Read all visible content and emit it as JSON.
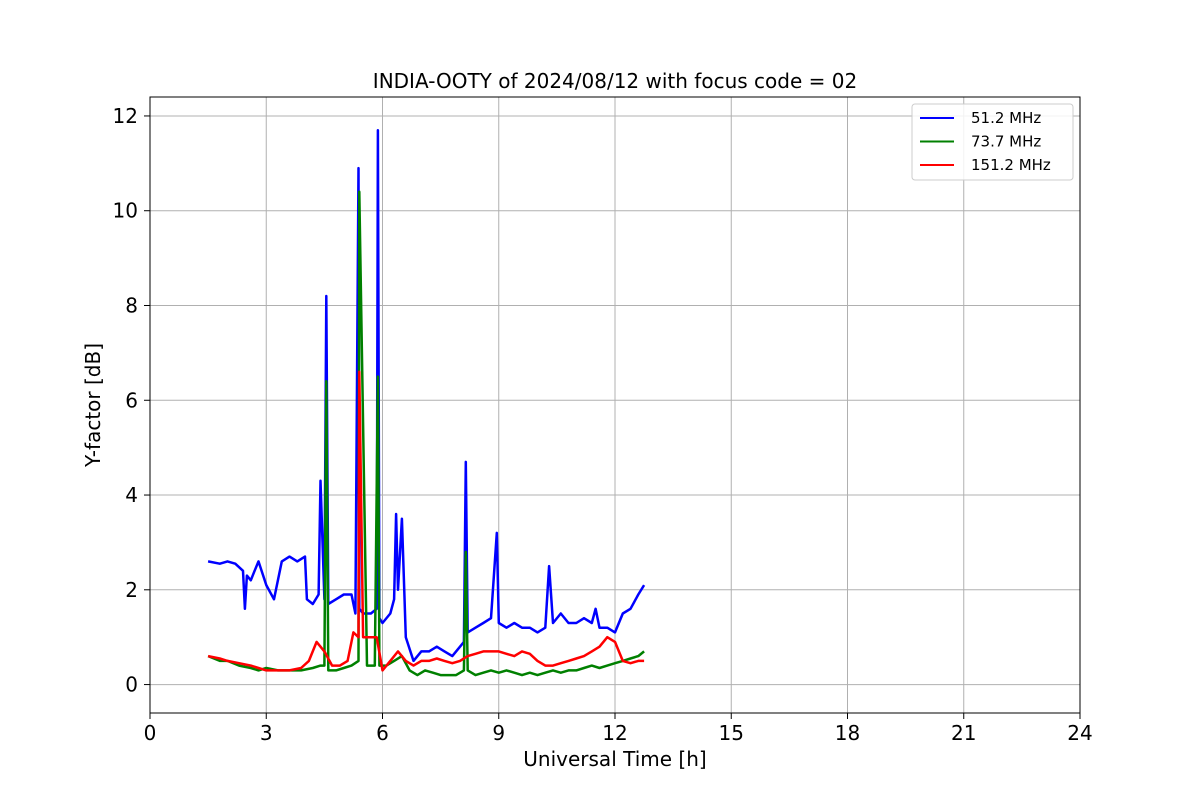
{
  "chart_data": {
    "type": "line",
    "title": "INDIA-OOTY of 2024/08/12 with focus code = 02",
    "xlabel": "Universal Time [h]",
    "ylabel": "Y-factor [dB]",
    "xlim": [
      0,
      24
    ],
    "ylim": [
      -0.6,
      12.4
    ],
    "xticks": [
      0,
      3,
      6,
      9,
      12,
      15,
      18,
      21,
      24
    ],
    "yticks": [
      0,
      2,
      4,
      6,
      8,
      10,
      12
    ],
    "grid": true,
    "legend_position": "top-right",
    "series": [
      {
        "name": " 51.2 MHz",
        "color": "#0000ff",
        "x": [
          1.5,
          1.8,
          2.0,
          2.2,
          2.4,
          2.45,
          2.5,
          2.6,
          2.7,
          2.8,
          3.0,
          3.2,
          3.4,
          3.6,
          3.8,
          4.0,
          4.05,
          4.2,
          4.35,
          4.4,
          4.5,
          4.55,
          4.6,
          4.8,
          5.0,
          5.2,
          5.3,
          5.38,
          5.4,
          5.5,
          5.7,
          5.85,
          5.88,
          5.92,
          6.0,
          6.2,
          6.3,
          6.35,
          6.4,
          6.5,
          6.6,
          6.8,
          7.0,
          7.2,
          7.4,
          7.6,
          7.8,
          8.0,
          8.1,
          8.15,
          8.2,
          8.4,
          8.6,
          8.8,
          8.95,
          9.0,
          9.2,
          9.4,
          9.6,
          9.8,
          10.0,
          10.2,
          10.3,
          10.4,
          10.6,
          10.8,
          11.0,
          11.2,
          11.4,
          11.5,
          11.6,
          11.8,
          12.0,
          12.2,
          12.4,
          12.6,
          12.75
        ],
        "y": [
          2.6,
          2.55,
          2.6,
          2.55,
          2.4,
          1.6,
          2.3,
          2.2,
          2.4,
          2.6,
          2.1,
          1.8,
          2.6,
          2.7,
          2.6,
          2.7,
          1.8,
          1.7,
          1.9,
          4.3,
          1.8,
          8.2,
          1.7,
          1.8,
          1.9,
          1.9,
          1.5,
          10.9,
          1.6,
          1.5,
          1.5,
          1.6,
          11.7,
          1.4,
          1.3,
          1.5,
          1.8,
          3.6,
          2.0,
          3.5,
          1.0,
          0.5,
          0.7,
          0.7,
          0.8,
          0.7,
          0.6,
          0.8,
          0.9,
          4.7,
          1.1,
          1.2,
          1.3,
          1.4,
          3.2,
          1.3,
          1.2,
          1.3,
          1.2,
          1.2,
          1.1,
          1.2,
          2.5,
          1.3,
          1.5,
          1.3,
          1.3,
          1.4,
          1.3,
          1.6,
          1.2,
          1.2,
          1.1,
          1.5,
          1.6,
          1.9,
          2.1
        ]
      },
      {
        "name": " 73.7 MHz",
        "color": "#008000",
        "x": [
          1.5,
          1.8,
          2.0,
          2.3,
          2.6,
          2.8,
          3.0,
          3.3,
          3.6,
          3.9,
          4.2,
          4.4,
          4.5,
          4.55,
          4.6,
          4.8,
          5.0,
          5.2,
          5.38,
          5.4,
          5.6,
          5.8,
          5.88,
          5.92,
          6.1,
          6.3,
          6.5,
          6.7,
          6.9,
          7.1,
          7.3,
          7.5,
          7.7,
          7.9,
          8.1,
          8.15,
          8.2,
          8.4,
          8.6,
          8.8,
          9.0,
          9.2,
          9.4,
          9.6,
          9.8,
          10.0,
          10.2,
          10.4,
          10.6,
          10.8,
          11.0,
          11.2,
          11.4,
          11.6,
          11.8,
          12.0,
          12.2,
          12.4,
          12.6,
          12.75
        ],
        "y": [
          0.6,
          0.5,
          0.5,
          0.4,
          0.35,
          0.3,
          0.35,
          0.3,
          0.3,
          0.3,
          0.35,
          0.4,
          0.4,
          6.4,
          0.3,
          0.3,
          0.35,
          0.4,
          0.5,
          10.4,
          0.4,
          0.4,
          6.5,
          0.4,
          0.4,
          0.5,
          0.6,
          0.3,
          0.2,
          0.3,
          0.25,
          0.2,
          0.2,
          0.2,
          0.3,
          2.8,
          0.3,
          0.2,
          0.25,
          0.3,
          0.25,
          0.3,
          0.25,
          0.2,
          0.25,
          0.2,
          0.25,
          0.3,
          0.25,
          0.3,
          0.3,
          0.35,
          0.4,
          0.35,
          0.4,
          0.45,
          0.5,
          0.55,
          0.6,
          0.7
        ]
      },
      {
        "name": "151.2 MHz",
        "color": "#ff0000",
        "x": [
          1.5,
          1.8,
          2.0,
          2.3,
          2.6,
          2.8,
          3.0,
          3.3,
          3.6,
          3.9,
          4.1,
          4.3,
          4.5,
          4.7,
          4.9,
          5.1,
          5.25,
          5.38,
          5.4,
          5.5,
          5.7,
          5.85,
          6.0,
          6.2,
          6.4,
          6.6,
          6.8,
          7.0,
          7.2,
          7.4,
          7.6,
          7.8,
          8.0,
          8.2,
          8.4,
          8.6,
          8.8,
          9.0,
          9.2,
          9.4,
          9.6,
          9.8,
          10.0,
          10.2,
          10.4,
          10.6,
          10.8,
          11.0,
          11.2,
          11.4,
          11.6,
          11.8,
          12.0,
          12.2,
          12.4,
          12.6,
          12.75
        ],
        "y": [
          0.6,
          0.55,
          0.5,
          0.45,
          0.4,
          0.35,
          0.3,
          0.3,
          0.3,
          0.35,
          0.5,
          0.9,
          0.7,
          0.4,
          0.4,
          0.5,
          1.1,
          1.0,
          6.6,
          1.0,
          1.0,
          1.0,
          0.3,
          0.5,
          0.7,
          0.5,
          0.4,
          0.5,
          0.5,
          0.55,
          0.5,
          0.45,
          0.5,
          0.6,
          0.65,
          0.7,
          0.7,
          0.7,
          0.65,
          0.6,
          0.7,
          0.65,
          0.5,
          0.4,
          0.4,
          0.45,
          0.5,
          0.55,
          0.6,
          0.7,
          0.8,
          1.0,
          0.9,
          0.5,
          0.45,
          0.5,
          0.5
        ]
      }
    ]
  }
}
